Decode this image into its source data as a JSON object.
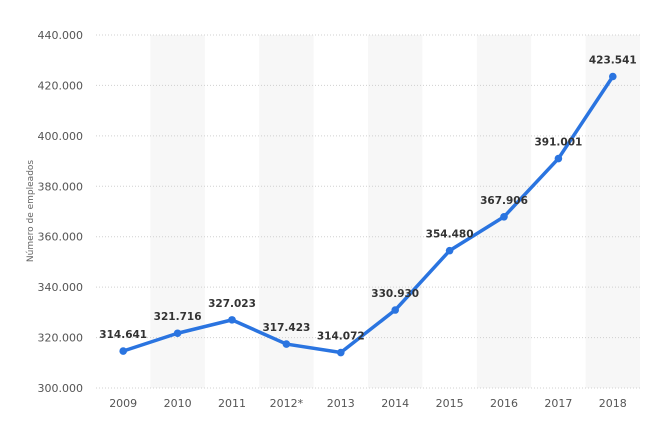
{
  "chart_data": {
    "type": "line",
    "title": "",
    "xlabel": "",
    "ylabel": "Número de empleados",
    "categories": [
      "2009",
      "2010",
      "2011",
      "2012*",
      "2013",
      "2014",
      "2015",
      "2016",
      "2017",
      "2018"
    ],
    "series": [
      {
        "values": [
          314641,
          321716,
          327023,
          317423,
          314072,
          330930,
          354480,
          367906,
          391001,
          423541
        ]
      }
    ],
    "data_labels": [
      "314.641",
      "321.716",
      "327.023",
      "317.423",
      "314.072",
      "330.930",
      "354.480",
      "367.906",
      "391.001",
      "423.541"
    ],
    "ylim": [
      300000,
      440000
    ],
    "yticks": [
      300000,
      320000,
      340000,
      360000,
      380000,
      400000,
      420000,
      440000
    ],
    "ytick_labels": [
      "300.000",
      "320.000",
      "340.000",
      "360.000",
      "380.000",
      "400.000",
      "420.000",
      "440.000"
    ],
    "grid": true,
    "alternating_column_shading": true,
    "colors": {
      "line": "#2a74e0",
      "band": "#f7f7f7",
      "grid": "#d0d0d0"
    }
  }
}
